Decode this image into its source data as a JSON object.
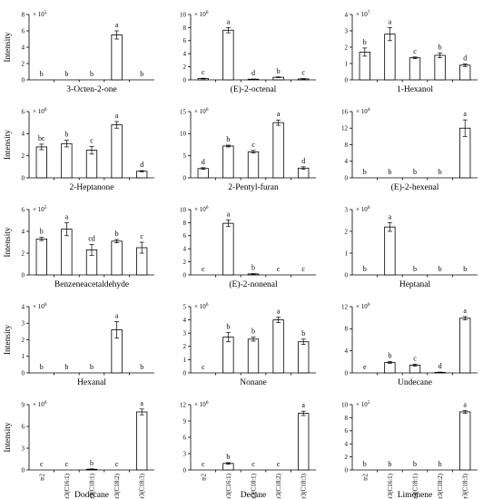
{
  "chart_data": [
    {
      "type": "bar",
      "title": "3-Octen-2-one",
      "ylabel": "Intensity",
      "scale": "× 10",
      "scale_exp": "5",
      "ylim": [
        0,
        8
      ],
      "ticks": [
        0,
        2,
        4,
        6,
        8
      ],
      "values": [
        0,
        0,
        0,
        5.5,
        0
      ],
      "errors": [
        0,
        0,
        0,
        0.5,
        0
      ],
      "letters": [
        "b",
        "b",
        "b",
        "a",
        "b"
      ]
    },
    {
      "type": "bar",
      "title": "(E)-2-octenal",
      "ylabel": "",
      "scale": "× 10",
      "scale_exp": "6",
      "ylim": [
        0,
        10
      ],
      "ticks": [
        0,
        2,
        4,
        6,
        8,
        10
      ],
      "values": [
        0.2,
        7.6,
        0.1,
        0.4,
        0.15
      ],
      "errors": [
        0.05,
        0.4,
        0.03,
        0.05,
        0.05
      ],
      "letters": [
        "c",
        "a",
        "d",
        "b",
        "c"
      ]
    },
    {
      "type": "bar",
      "title": "1-Hexanol",
      "ylabel": "",
      "scale": "× 10",
      "scale_exp": "7",
      "ylim": [
        0,
        4
      ],
      "ticks": [
        0,
        1,
        2,
        3,
        4
      ],
      "values": [
        1.7,
        2.8,
        1.35,
        1.5,
        0.9
      ],
      "errors": [
        0.25,
        0.4,
        0.05,
        0.15,
        0.08
      ],
      "letters": [
        "b",
        "a",
        "c",
        "b",
        "d"
      ]
    },
    {
      "type": "bar",
      "title": "2-Heptanone",
      "ylabel": "Intensity",
      "scale": "× 10",
      "scale_exp": "6",
      "ylim": [
        0,
        6
      ],
      "ticks": [
        0,
        2,
        4,
        6
      ],
      "values": [
        2.8,
        3.1,
        2.5,
        4.8,
        0.6
      ],
      "errors": [
        0.25,
        0.3,
        0.35,
        0.3,
        0.05
      ],
      "letters": [
        "bc",
        "b",
        "c",
        "a",
        "d"
      ]
    },
    {
      "type": "bar",
      "title": "2-Pentyl-furan",
      "ylabel": "",
      "scale": "× 10",
      "scale_exp": "6",
      "ylim": [
        0,
        15
      ],
      "ticks": [
        0,
        5,
        10,
        15
      ],
      "values": [
        2.1,
        7.2,
        5.9,
        12.5,
        2.2
      ],
      "errors": [
        0.2,
        0.2,
        0.3,
        0.6,
        0.3
      ],
      "letters": [
        "d",
        "b",
        "c",
        "a",
        "d"
      ]
    },
    {
      "type": "bar",
      "title": "(E)-2-hexenal",
      "ylabel": "",
      "scale": "× 10",
      "scale_exp": "4",
      "ylim": [
        0,
        16
      ],
      "ticks": [
        0,
        4,
        8,
        12,
        16
      ],
      "values": [
        0,
        0,
        0,
        0,
        12
      ],
      "errors": [
        0,
        0,
        0,
        0,
        2
      ],
      "letters": [
        "b",
        "b",
        "b",
        "b",
        "a"
      ]
    },
    {
      "type": "bar",
      "title": "Benzeneacetaldehyde",
      "ylabel": "Intensity",
      "scale": "× 10",
      "scale_exp": "5",
      "ylim": [
        0,
        6
      ],
      "ticks": [
        0,
        2,
        4,
        6
      ],
      "values": [
        3.3,
        4.2,
        2.3,
        3.1,
        2.5
      ],
      "errors": [
        0.15,
        0.6,
        0.5,
        0.15,
        0.5
      ],
      "letters": [
        "b",
        "a",
        "cd",
        "b",
        "c"
      ]
    },
    {
      "type": "bar",
      "title": "(E)-2-nonenal",
      "ylabel": "",
      "scale": "× 10",
      "scale_exp": "6",
      "ylim": [
        0,
        10
      ],
      "ticks": [
        0,
        2,
        4,
        6,
        8,
        10
      ],
      "values": [
        0,
        7.9,
        0.15,
        0,
        0
      ],
      "errors": [
        0,
        0.5,
        0.05,
        0,
        0
      ],
      "letters": [
        "c",
        "a",
        "b",
        "c",
        "c"
      ]
    },
    {
      "type": "bar",
      "title": "Heptanal",
      "ylabel": "",
      "scale": "× 10",
      "scale_exp": "6",
      "ylim": [
        0,
        3
      ],
      "ticks": [
        0,
        1,
        2,
        3
      ],
      "values": [
        0,
        2.2,
        0,
        0,
        0
      ],
      "errors": [
        0,
        0.2,
        0,
        0,
        0
      ],
      "letters": [
        "b",
        "a",
        "b",
        "b",
        "b"
      ]
    },
    {
      "type": "bar",
      "title": "Hexanal",
      "ylabel": "Intensity",
      "scale": "× 10",
      "scale_exp": "6",
      "ylim": [
        0,
        4
      ],
      "ticks": [
        0,
        1,
        2,
        3,
        4
      ],
      "values": [
        0,
        0,
        0,
        2.6,
        0
      ],
      "errors": [
        0,
        0,
        0,
        0.5,
        0
      ],
      "letters": [
        "b",
        "b",
        "b",
        "a",
        "b"
      ]
    },
    {
      "type": "bar",
      "title": "Nonane",
      "ylabel": "",
      "scale": "× 10",
      "scale_exp": "6",
      "ylim": [
        0,
        5
      ],
      "ticks": [
        0,
        1,
        2,
        3,
        4,
        5
      ],
      "values": [
        0,
        2.7,
        2.55,
        4.0,
        2.35
      ],
      "errors": [
        0,
        0.35,
        0.15,
        0.2,
        0.2
      ],
      "letters": [
        "c",
        "b",
        "b",
        "a",
        "b"
      ]
    },
    {
      "type": "bar",
      "title": "Undecane",
      "ylabel": "",
      "scale": "× 10",
      "scale_exp": "6",
      "ylim": [
        0,
        12
      ],
      "ticks": [
        0,
        4,
        8,
        12
      ],
      "values": [
        0,
        1.9,
        1.4,
        0.1,
        9.9
      ],
      "errors": [
        0,
        0.15,
        0.2,
        0.05,
        0.3
      ],
      "letters": [
        "e",
        "b",
        "c",
        "d",
        "a"
      ]
    },
    {
      "type": "bar",
      "title": "Dodecane",
      "ylabel": "Intensity",
      "scale": "× 10",
      "scale_exp": "6",
      "ylim": [
        0,
        9
      ],
      "ticks": [
        0,
        3,
        6,
        9
      ],
      "values": [
        0,
        0,
        0.1,
        0,
        8.0
      ],
      "errors": [
        0,
        0,
        0.05,
        0,
        0.4
      ],
      "letters": [
        "c",
        "c",
        "b",
        "c",
        "a"
      ],
      "categories": [
        "tr2",
        "tr3(C16:1)",
        "tr3(C18:1)",
        "tr3(C18:2)",
        "tr3(C18:3)"
      ]
    },
    {
      "type": "bar",
      "title": "Decane",
      "ylabel": "",
      "scale": "× 10",
      "scale_exp": "6",
      "ylim": [
        0,
        12
      ],
      "ticks": [
        0,
        3,
        6,
        9,
        12
      ],
      "values": [
        0,
        1.2,
        0,
        0,
        10.4
      ],
      "errors": [
        0,
        0.15,
        0,
        0,
        0.4
      ],
      "letters": [
        "c",
        "b",
        "c",
        "c",
        "a"
      ],
      "categories": [
        "tr2",
        "tr3(C16:1)",
        "tr3(C18:1)",
        "tr3(C18:2)",
        "tr3(C18:3)"
      ]
    },
    {
      "type": "bar",
      "title": "Limonene",
      "ylabel": "",
      "scale": "× 10",
      "scale_exp": "5",
      "ylim": [
        0,
        10
      ],
      "ticks": [
        0,
        2,
        4,
        6,
        8,
        10
      ],
      "values": [
        0,
        0,
        0,
        0,
        8.9
      ],
      "errors": [
        0,
        0,
        0,
        0,
        0.2
      ],
      "letters": [
        "b",
        "b",
        "b",
        "b",
        "a"
      ],
      "categories": [
        "tr2",
        "tr3(C16:1)",
        "tr3(C18:1)",
        "tr3(C18:2)",
        "tr3(C18:3)"
      ]
    }
  ]
}
